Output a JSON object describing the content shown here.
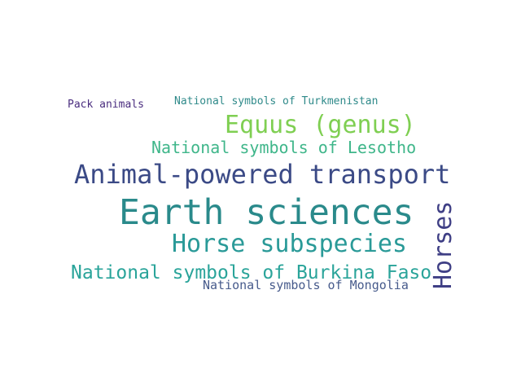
{
  "words": [
    {
      "text": "Pack animals",
      "color": "#4a2d7f"
    },
    {
      "text": "National symbols of Turkmenistan",
      "color": "#2f8a8a"
    },
    {
      "text": "Equus (genus)",
      "color": "#7fcf52"
    },
    {
      "text": "National symbols of Lesotho",
      "color": "#3fb68a"
    },
    {
      "text": "Animal-powered transport",
      "color": "#3b4a86"
    },
    {
      "text": "Earth sciences",
      "color": "#2a8a8b"
    },
    {
      "text": "Horses",
      "color": "#3f3f85"
    },
    {
      "text": "Horse subspecies",
      "color": "#2a9a98"
    },
    {
      "text": "National symbols of Burkina Faso",
      "color": "#2aa49a"
    },
    {
      "text": "National symbols of Mongolia",
      "color": "#475b8c"
    }
  ]
}
